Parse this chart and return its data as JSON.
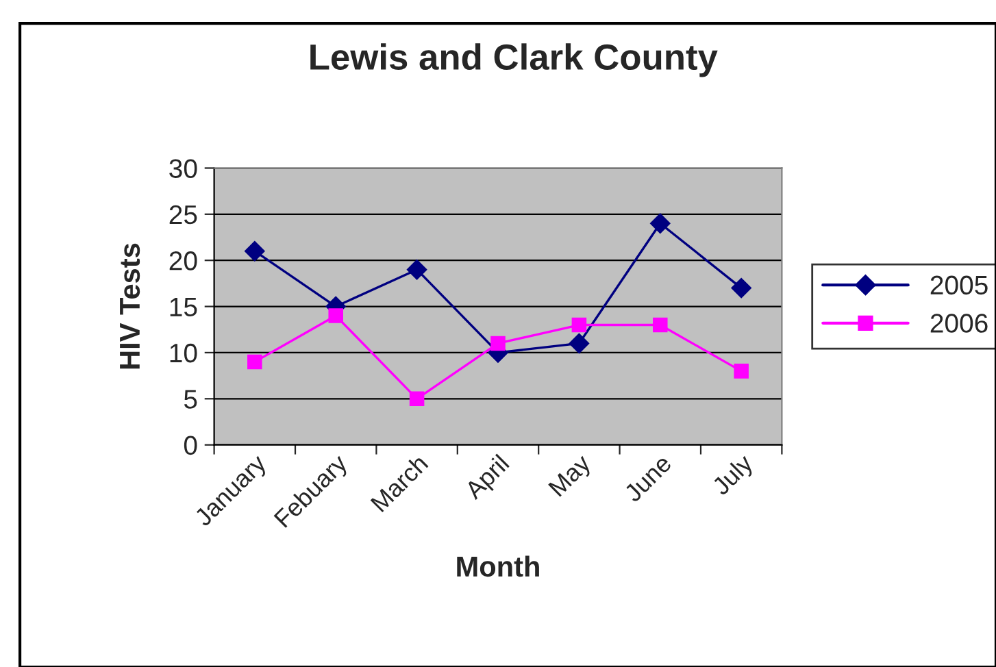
{
  "chart_data": {
    "type": "line",
    "title": "Lewis and Clark County",
    "xlabel": "Month",
    "ylabel": "HIV Tests",
    "categories": [
      "January",
      "Febuary",
      "March",
      "April",
      "May",
      "June",
      "July"
    ],
    "series": [
      {
        "name": "2005",
        "color": "#000080",
        "marker": "diamond",
        "values": [
          21,
          15,
          19,
          10,
          11,
          24,
          17
        ]
      },
      {
        "name": "2006",
        "color": "#ff00ff",
        "marker": "square",
        "values": [
          9,
          14,
          5,
          11,
          13,
          13,
          8
        ]
      }
    ],
    "ylim": [
      0,
      30
    ],
    "yticks": [
      0,
      5,
      10,
      15,
      20,
      25,
      30
    ],
    "grid": "y",
    "legend": "right",
    "line_style": "solid"
  }
}
